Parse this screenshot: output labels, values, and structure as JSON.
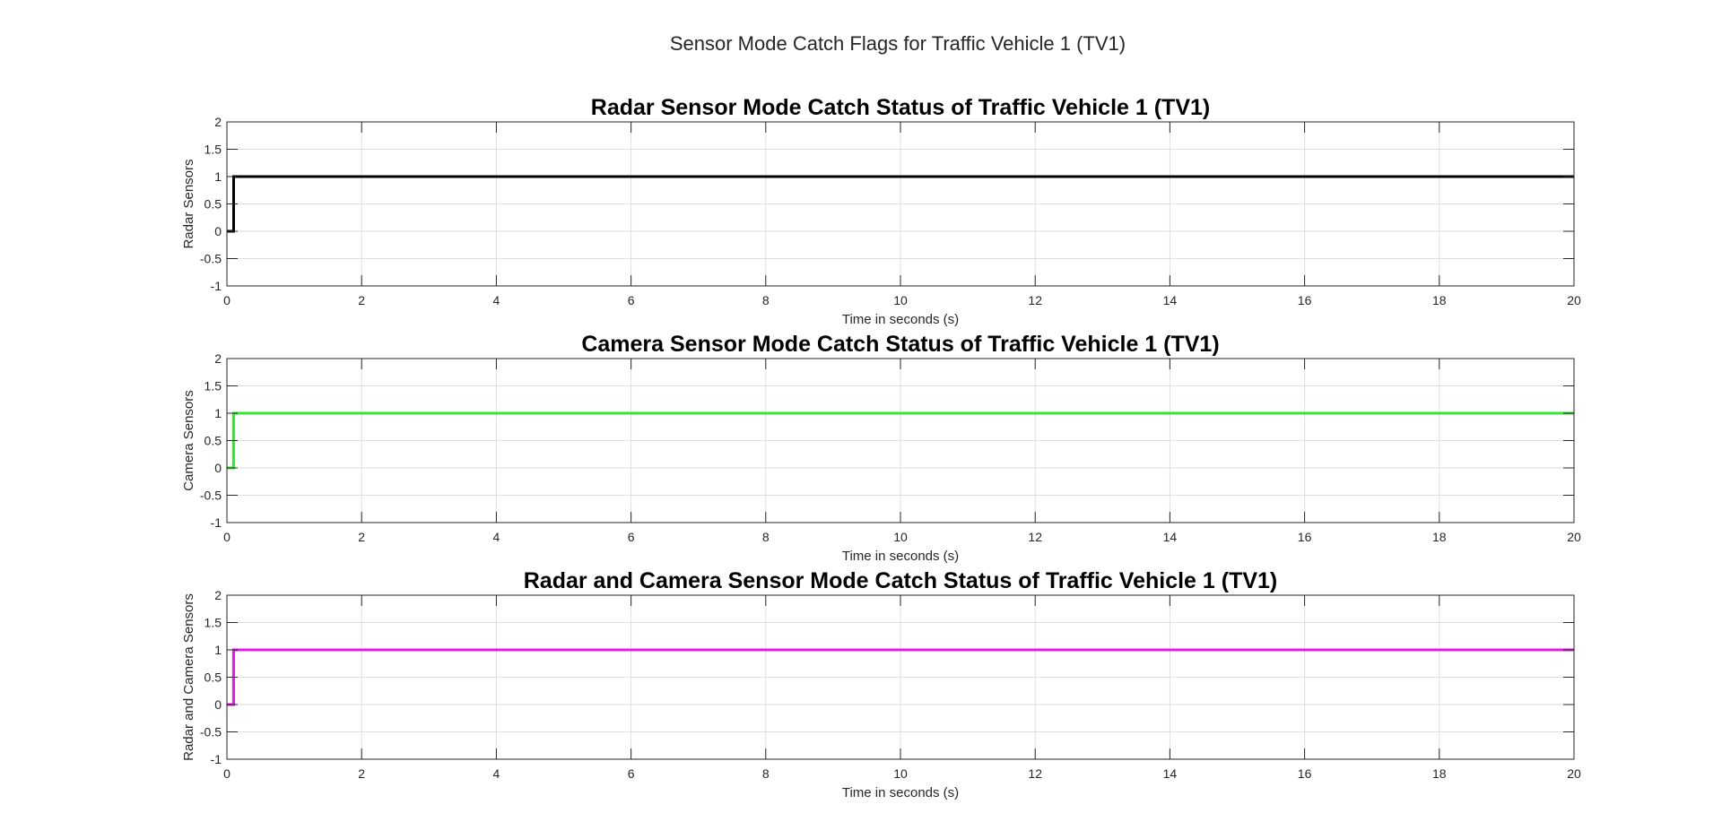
{
  "figure": {
    "title": "Sensor Mode Catch Flags for Traffic Vehicle 1 (TV1)"
  },
  "chart_data": [
    {
      "type": "line",
      "title": "Radar Sensor Mode Catch Status of Traffic Vehicle 1 (TV1)",
      "xlabel": "Time in seconds (s)",
      "ylabel": "Radar Sensors",
      "xlim": [
        0,
        20
      ],
      "ylim": [
        -1,
        2
      ],
      "xticks": [
        0,
        2,
        4,
        6,
        8,
        10,
        12,
        14,
        16,
        18,
        20
      ],
      "yticks": [
        -1,
        -0.5,
        0,
        0.5,
        1,
        1.5,
        2
      ],
      "grid": true,
      "series": [
        {
          "color": "#000000",
          "x": [
            0.0,
            0.1,
            0.1,
            20.0
          ],
          "y": [
            0,
            0,
            1,
            1
          ]
        }
      ]
    },
    {
      "type": "line",
      "title": "Camera Sensor Mode Catch Status of Traffic Vehicle 1 (TV1)",
      "xlabel": "Time in seconds (s)",
      "ylabel": "Camera Sensors",
      "xlim": [
        0,
        20
      ],
      "ylim": [
        -1,
        2
      ],
      "xticks": [
        0,
        2,
        4,
        6,
        8,
        10,
        12,
        14,
        16,
        18,
        20
      ],
      "yticks": [
        -1,
        -0.5,
        0,
        0.5,
        1,
        1.5,
        2
      ],
      "grid": true,
      "series": [
        {
          "color": "#33e633",
          "x": [
            0.0,
            0.1,
            0.1,
            20.0
          ],
          "y": [
            0,
            0,
            1,
            1
          ]
        }
      ]
    },
    {
      "type": "line",
      "title": "Radar and Camera Sensor Mode Catch Status of Traffic Vehicle 1 (TV1)",
      "xlabel": "Time in seconds (s)",
      "ylabel": "Radar and Camera Sensors",
      "xlim": [
        0,
        20
      ],
      "ylim": [
        -1,
        2
      ],
      "xticks": [
        0,
        2,
        4,
        6,
        8,
        10,
        12,
        14,
        16,
        18,
        20
      ],
      "yticks": [
        -1,
        -0.5,
        0,
        0.5,
        1,
        1.5,
        2
      ],
      "grid": true,
      "series": [
        {
          "color": "#e619e6",
          "x": [
            0.0,
            0.1,
            0.1,
            20.0
          ],
          "y": [
            0,
            0,
            1,
            1
          ]
        }
      ]
    }
  ]
}
